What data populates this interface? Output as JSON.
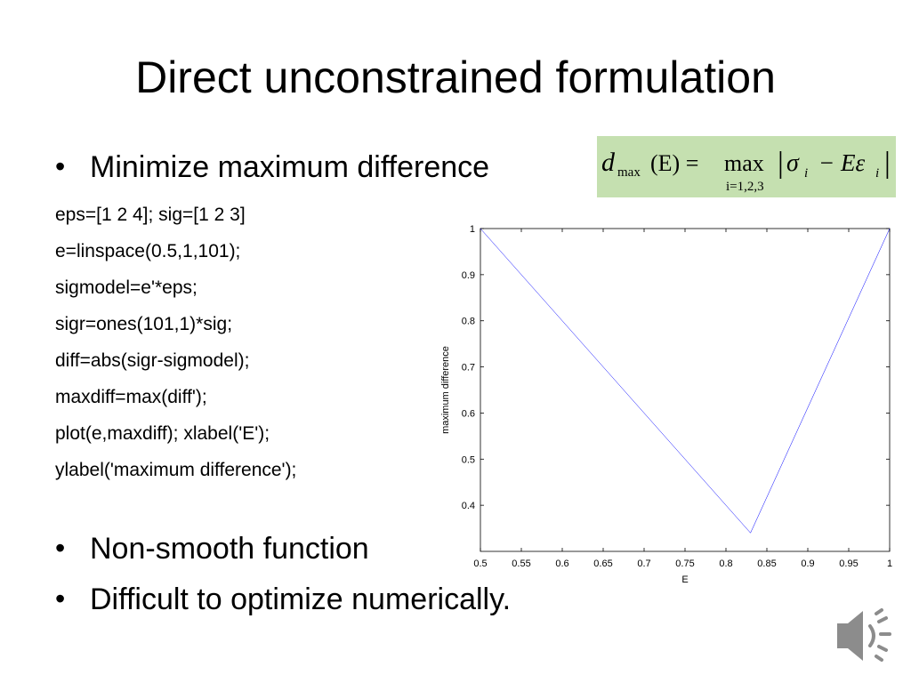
{
  "title": "Direct unconstrained formulation",
  "bullets": [
    "Minimize maximum difference",
    "Non-smooth function",
    "Difficult to optimize numerically."
  ],
  "formula": {
    "d": "d",
    "d_sub": "max",
    "arg": "(E) =",
    "op": "max",
    "op_sub": "i=1,2,3",
    "bar_open": "|",
    "sigma": "σ",
    "sigma_sub": "i",
    "minus": "− Eε",
    "eps_sub": "i",
    "bar_close": "|"
  },
  "code": [
    "eps=[1 2 4]; sig=[1 2 3]",
    "e=linspace(0.5,1,101);",
    "sigmodel=e'*eps;",
    "sigr=ones(101,1)*sig;",
    "diff=abs(sigr-sigmodel);",
    "maxdiff=max(diff');",
    "plot(e,maxdiff); xlabel('E');",
    "ylabel('maximum difference');"
  ],
  "chart_data": {
    "type": "line",
    "x_label": "E",
    "y_label": "maximum difference",
    "x": [
      0.5,
      0.83,
      1
    ],
    "values": [
      1,
      0.34,
      1
    ],
    "color": "#0000ff",
    "xlim": [
      0.5,
      1
    ],
    "xticks": [
      0.5,
      0.55,
      0.6,
      0.65,
      0.7,
      0.75,
      0.8,
      0.85,
      0.9,
      0.95,
      1
    ],
    "ylim": [
      0.3,
      1
    ],
    "yticks": [
      0.4,
      0.5,
      0.6,
      0.7,
      0.8,
      0.9,
      1
    ],
    "grid": false
  }
}
